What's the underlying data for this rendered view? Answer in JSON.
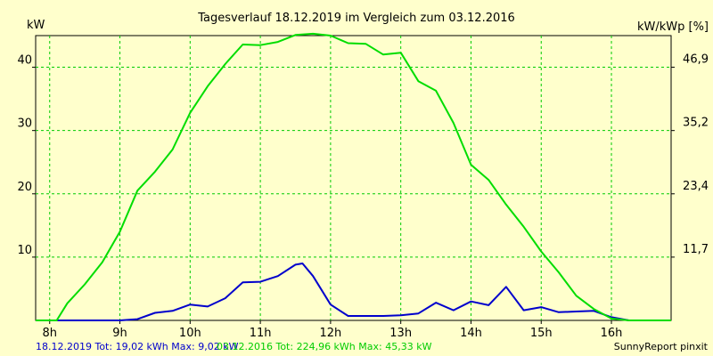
{
  "chart_data": {
    "type": "line",
    "title": "Tagesverlauf 18.12.2019 im Vergleich zum 03.12.2016",
    "ylabel_left": "kW",
    "ylabel_right": "kW/kWp [%]",
    "x_ticks": [
      "8h",
      "9h",
      "10h",
      "11h",
      "12h",
      "13h",
      "14h",
      "15h",
      "16h"
    ],
    "xlim": [
      7.8,
      16.85
    ],
    "ylim_left": [
      0,
      45
    ],
    "y_ticks_left": [
      "10",
      "20",
      "30",
      "40"
    ],
    "y_ticks_right": [
      "11,7",
      "23,4",
      "35,2",
      "46,9"
    ],
    "grid": true,
    "series": [
      {
        "name": "18.12.2019",
        "color": "#0000cc",
        "x": [
          7.8,
          8.6,
          9.0,
          9.25,
          9.5,
          9.75,
          10.0,
          10.25,
          10.5,
          10.75,
          11.0,
          11.25,
          11.5,
          11.6,
          11.75,
          12.0,
          12.25,
          12.5,
          12.75,
          13.0,
          13.25,
          13.5,
          13.75,
          14.0,
          14.25,
          14.5,
          14.75,
          15.0,
          15.25,
          15.5,
          15.75,
          16.0,
          16.25,
          16.5,
          16.85
        ],
        "values": [
          0,
          0,
          0,
          0.2,
          1.2,
          1.5,
          2.5,
          2.2,
          3.5,
          6.0,
          6.1,
          7.0,
          8.8,
          9.0,
          7.0,
          2.5,
          0.7,
          0.7,
          0.7,
          0.8,
          1.1,
          2.8,
          1.6,
          3.0,
          2.4,
          5.3,
          1.6,
          2.1,
          1.3,
          1.4,
          1.5,
          0.5,
          0,
          0,
          0
        ]
      },
      {
        "name": "03.12.2016",
        "color": "#00dd00",
        "x": [
          7.8,
          8.1,
          8.25,
          8.5,
          8.75,
          9.0,
          9.25,
          9.5,
          9.75,
          10.0,
          10.25,
          10.5,
          10.75,
          11.0,
          11.25,
          11.5,
          11.75,
          12.0,
          12.25,
          12.5,
          12.75,
          13.0,
          13.25,
          13.5,
          13.75,
          14.0,
          14.25,
          14.5,
          14.75,
          15.0,
          15.25,
          15.5,
          15.75,
          16.0,
          16.25,
          16.5,
          16.85
        ],
        "values": [
          0,
          0,
          2.7,
          5.7,
          9.2,
          14.0,
          20.5,
          23.5,
          27.0,
          32.8,
          37.0,
          40.5,
          43.6,
          43.5,
          44.0,
          45.1,
          45.3,
          45.0,
          43.8,
          43.7,
          42.0,
          42.3,
          37.8,
          36.3,
          31.2,
          24.6,
          22.2,
          18.3,
          14.8,
          10.9,
          7.6,
          3.9,
          1.8,
          0.3,
          0,
          0,
          0
        ]
      }
    ]
  },
  "footer": {
    "blue_text": "18.12.2019 Tot: 19,02 kWh Max: 9,02 kW",
    "green_text": "03.12.2016 Tot: 224,96 kWh Max: 45,33 kW",
    "brand": "SunnyReport pinxit"
  }
}
